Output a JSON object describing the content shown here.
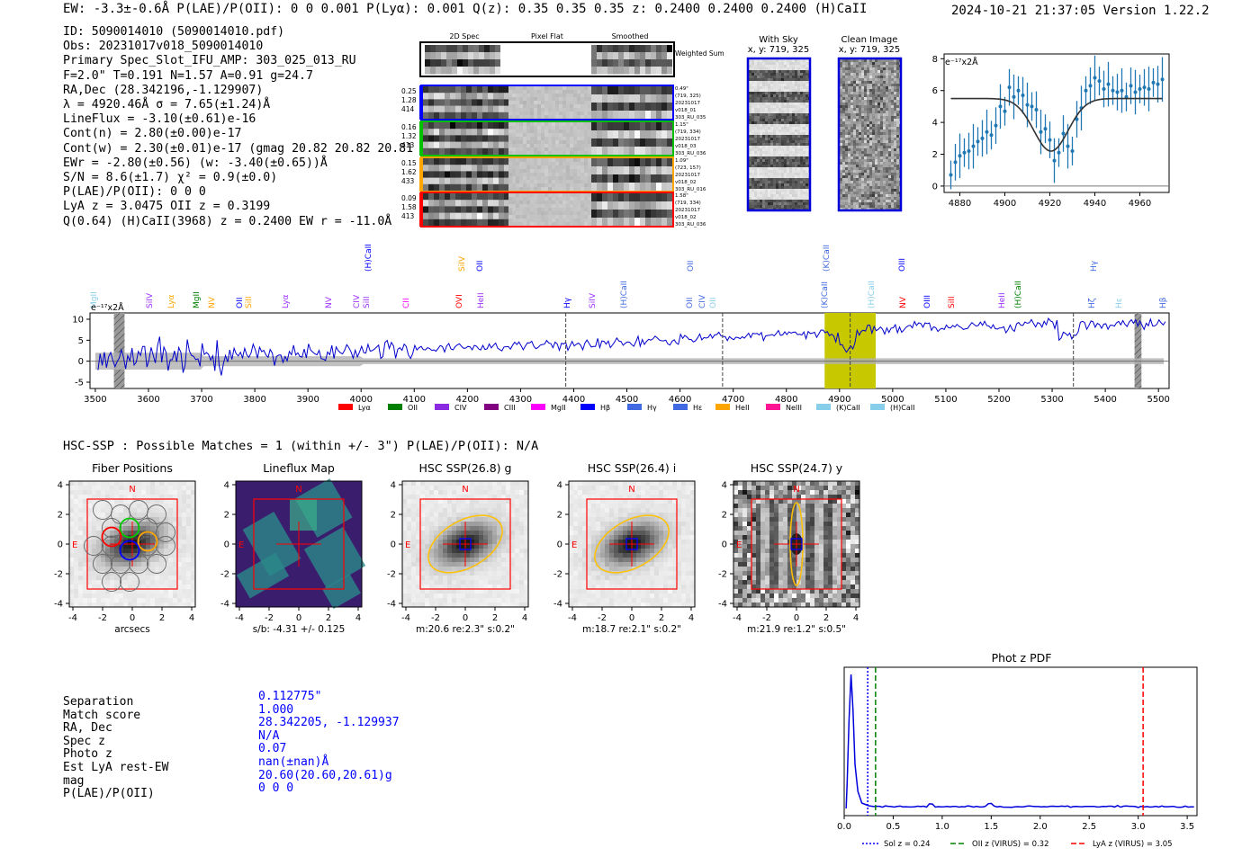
{
  "header": {
    "text": "EW: -3.3±-0.6Å  P(LAE)/P(OII): 0 0 0.001  P(Lyα): 0.001  Q(z): 0.35 0.35 0.35  z: 0.2400 0.2400 0.2400 (H)CaII",
    "timestamp": "2024-10-21 21:37:05  Version 1.22.2"
  },
  "info": [
    "ID: 5090014010 (5090014010.pdf)",
    "Obs: 20231017v018_5090014010",
    "Primary Spec_Slot_IFU_AMP: 303_025_013_RU",
    "F=2.0\"  T=0.191  N=1.57  A=0.91  g=24.7",
    "RA,Dec (28.342196,-1.129907)",
    "λ = 4920.46Å  σ = 7.65(±1.24)Å",
    "LineFlux = -3.10(±0.61)e-16",
    "Cont(n) = 2.80(±0.00)e-17",
    "Cont(w) = 2.30(±0.01)e-17 (gmag 20.82 20.82 20.81 *)",
    "EWr = -2.80(±0.56) (w: -3.40(±0.65))Å",
    "S/N = 8.6(±1.7)  χ² = 0.9(±0.0)",
    "P(LAE)/P(OII): 0 0 0",
    "LyA z = 3.0475  OII z = 0.3199",
    "Q(0.64) (H)CaII(3968) z = 0.2400  EW r = -11.0Å"
  ],
  "cutouts": {
    "col_labels": [
      "2D Spec",
      "Pixel Flat",
      "Smoothed"
    ],
    "weighted_sum_label": "Weighted Sum",
    "rows": [
      {
        "left": [
          "0.25",
          "1.28",
          "414"
        ],
        "right": [
          "0.49\"",
          "(719, 325)",
          "20231017",
          "v018_01",
          "303_RU_035"
        ],
        "color": "#0000ff"
      },
      {
        "left": [
          "0.16",
          "1.32",
          "413"
        ],
        "right": [
          "1.15\"",
          "(719, 334)",
          "20231017",
          "v018_03",
          "303_RU_036"
        ],
        "color": "#00c000"
      },
      {
        "left": [
          "0.15",
          "1.62",
          "433"
        ],
        "right": [
          "1.09\"",
          "(723, 157)",
          "20231017",
          "v018_02",
          "303_RU_016"
        ],
        "color": "#ffa500"
      },
      {
        "left": [
          "0.09",
          "1.58",
          "413"
        ],
        "right": [
          "1.58\"",
          "(719, 334)",
          "20231017",
          "v018_02",
          "303_RU_036"
        ],
        "color": "#ff0000"
      }
    ]
  },
  "sky": {
    "with_sky_title": "With Sky",
    "with_sky_coords": "x, y: 719, 325",
    "clean_title": "Clean Image",
    "clean_coords": "x, y: 719, 325"
  },
  "line_fit": {
    "unit_label": "e⁻¹⁷x2Å",
    "x_ticks": [
      "4880",
      "4900",
      "4920",
      "4940",
      "4960"
    ],
    "y_ticks": [
      "0",
      "2",
      "4",
      "6",
      "8"
    ]
  },
  "full_spectrum": {
    "unit_label": "e⁻¹⁷x2Å",
    "x_ticks": [
      "3500",
      "3600",
      "3700",
      "3800",
      "3900",
      "4000",
      "4100",
      "4200",
      "4300",
      "4400",
      "4500",
      "4600",
      "4700",
      "4800",
      "4900",
      "5000",
      "5100",
      "5200",
      "5300",
      "5400",
      "5500"
    ],
    "y_ticks": [
      "10",
      "5",
      "0",
      "-5"
    ],
    "line_labels": [
      {
        "t": "MgII",
        "x": 104,
        "c": "#87ceeb"
      },
      {
        "t": "SiIV",
        "x": 166,
        "c": "#9b30ff"
      },
      {
        "t": "Lyα",
        "x": 190,
        "c": "#ffa500"
      },
      {
        "t": "MgII",
        "x": 218,
        "c": "#008000"
      },
      {
        "t": "NV",
        "x": 235,
        "c": "#ffa500"
      },
      {
        "t": "OII",
        "x": 266,
        "c": "#0000ff"
      },
      {
        "t": "SiII",
        "x": 276,
        "c": "#ffa500"
      },
      {
        "t": "Lyα",
        "x": 317,
        "c": "#9b30ff"
      },
      {
        "t": "NV",
        "x": 365,
        "c": "#9b30ff"
      },
      {
        "t": "CIV",
        "x": 396,
        "c": "#9b30ff"
      },
      {
        "t": "SiII",
        "x": 407,
        "c": "#9b30ff"
      },
      {
        "t": "CII",
        "x": 451,
        "c": "#ff00ff"
      },
      {
        "t": "OVI",
        "x": 510,
        "c": "#ff0000"
      },
      {
        "t": "HeII",
        "x": 534,
        "c": "#9b30ff"
      },
      {
        "t": "Hγ",
        "x": 630,
        "c": "#0000ff"
      },
      {
        "t": "SiIV",
        "x": 658,
        "c": "#9b30ff"
      },
      {
        "t": "(H)CaII",
        "x": 693,
        "c": "#4169e1"
      },
      {
        "t": "OII",
        "x": 766,
        "c": "#4169e1"
      },
      {
        "t": "CIV",
        "x": 780,
        "c": "#4169e1"
      },
      {
        "t": "OII",
        "x": 792,
        "c": "#87ceeb"
      },
      {
        "t": "(K)CaII",
        "x": 916,
        "c": "#4169e1"
      },
      {
        "t": "(H)CaII",
        "x": 968,
        "c": "#87ceeb"
      },
      {
        "t": "NV",
        "x": 1003,
        "c": "#ff0000"
      },
      {
        "t": "OIII",
        "x": 1030,
        "c": "#0000ff"
      },
      {
        "t": "SiII",
        "x": 1057,
        "c": "#ff0000"
      },
      {
        "t": "HeII",
        "x": 1113,
        "c": "#9b30ff"
      },
      {
        "t": "(H)CaII",
        "x": 1131,
        "c": "#008000"
      },
      {
        "t": "Hζ",
        "x": 1213,
        "c": "#4169e1"
      },
      {
        "t": "Hε",
        "x": 1243,
        "c": "#87ceeb"
      },
      {
        "t": "Hβ",
        "x": 1292,
        "c": "#4169e1"
      }
    ],
    "upper_labels": [
      {
        "t": "(H)CaII",
        "x": 409,
        "c": "#0000ff"
      },
      {
        "t": "SiIV",
        "x": 513,
        "c": "#ffa500"
      },
      {
        "t": "OII",
        "x": 533,
        "c": "#0000ff"
      },
      {
        "t": "OII",
        "x": 767,
        "c": "#4169e1"
      },
      {
        "t": "(K)CaII",
        "x": 918,
        "c": "#4169e1"
      },
      {
        "t": "OIII",
        "x": 1002,
        "c": "#0000ff"
      },
      {
        "t": "Hγ",
        "x": 1215,
        "c": "#4169e1"
      }
    ],
    "legend": [
      {
        "t": "Lyα",
        "c": "#ff0000"
      },
      {
        "t": "OII",
        "c": "#008000"
      },
      {
        "t": "CIV",
        "c": "#8a2be2"
      },
      {
        "t": "CIII",
        "c": "#800080"
      },
      {
        "t": "MgII",
        "c": "#ff00ff"
      },
      {
        "t": "Hβ",
        "c": "#0000ff"
      },
      {
        "t": "Hγ",
        "c": "#4169e1"
      },
      {
        "t": "Hε",
        "c": "#4169e1"
      },
      {
        "t": "HeII",
        "c": "#ffa500"
      },
      {
        "t": "NeIII",
        "c": "#ff1493"
      },
      {
        "t": "(K)CaII",
        "c": "#87ceeb"
      },
      {
        "t": "(H)CaII",
        "c": "#87ceeb"
      }
    ]
  },
  "hsc": {
    "summary": "HSC-SSP : Possible Matches = 1 (within +/- 3\")  P(LAE)/P(OII): N/A",
    "panels": [
      {
        "title": "Fiber Positions",
        "caption": "arcsecs"
      },
      {
        "title": "Lineflux Map",
        "caption": "s/b: -4.31 +/- 0.125"
      },
      {
        "title": "HSC SSP(26.8) g",
        "caption": "m:20.6  re:2.3\"  s:0.2\""
      },
      {
        "title": "HSC SSP(26.4) i",
        "caption": "m:18.7  re:2.1\"  s:0.2\""
      },
      {
        "title": "HSC SSP(24.7) y",
        "caption": "m:21.9  re:1.2\"  s:0.5\""
      }
    ],
    "axis_ticks": [
      "4",
      "2",
      "0",
      "-2",
      "-4"
    ],
    "x_ticks": [
      "-4",
      "-2",
      "0",
      "2",
      "4"
    ],
    "north_label": "N",
    "east_label": "E"
  },
  "match": {
    "labels": [
      "Separation",
      "Match score",
      "RA, Dec",
      "Spec z",
      "Photo z",
      "Est LyA rest-EW",
      "mag",
      "P(LAE)/P(OII)"
    ],
    "values": [
      "0.112775\"",
      "1.000",
      "28.342205, -1.129937",
      "N/A",
      "0.07",
      "nan(±nan)Å",
      "20.60(20.60,20.61)g",
      "0 0 0"
    ]
  },
  "photz": {
    "title": "Phot z PDF",
    "x_ticks": [
      "0.0",
      "0.5",
      "1.0",
      "1.5",
      "2.0",
      "2.5",
      "3.0",
      "3.5"
    ],
    "legend": [
      {
        "t": "Sol z = 0.24",
        "c": "#0000ff",
        "dash": "2,2"
      },
      {
        "t": "OII z (VIRUS) = 0.32",
        "c": "#008000",
        "dash": "6,3"
      },
      {
        "t": "LyA z (VIRUS) = 3.05",
        "c": "#ff0000",
        "dash": "6,3"
      }
    ]
  },
  "chart_data": [
    {
      "type": "scatter",
      "name": "line fit",
      "x_range": [
        4873,
        4973
      ],
      "ylim": [
        -0.4,
        8.3
      ],
      "points_x": [
        4876,
        4878,
        4880,
        4882,
        4884,
        4886,
        4888,
        4890,
        4892,
        4894,
        4896,
        4898,
        4900,
        4902,
        4904,
        4906,
        4908,
        4910,
        4912,
        4914,
        4916,
        4918,
        4920,
        4922,
        4924,
        4926,
        4928,
        4930,
        4932,
        4934,
        4936,
        4938,
        4940,
        4942,
        4944,
        4946,
        4948,
        4950,
        4952,
        4954,
        4956,
        4958,
        4960,
        4962,
        4964,
        4966,
        4968,
        4970
      ],
      "points_y": [
        0.7,
        1.5,
        1.9,
        2.1,
        2.2,
        2.5,
        2.8,
        3.0,
        3.4,
        3.2,
        3.8,
        5.0,
        4.7,
        6.2,
        5.6,
        6.0,
        5.7,
        5.1,
        5.0,
        4.8,
        3.4,
        3.6,
        2.9,
        1.6,
        2.1,
        3.3,
        2.5,
        2.2,
        4.2,
        4.9,
        6.0,
        6.3,
        6.8,
        6.6,
        6.1,
        6.4,
        6.0,
        5.9,
        6.0,
        5.6,
        6.3,
        5.9,
        6.1,
        6.2,
        6.1,
        6.5,
        6.4,
        6.7
      ],
      "fit": {
        "continuum": 5.5,
        "center": 4920.5,
        "sigma": 7.65,
        "depth": 3.3
      }
    },
    {
      "type": "line",
      "name": "full spectrum",
      "x_range": [
        3490,
        5520
      ],
      "ylim": [
        -6.5,
        11.5
      ],
      "vlines": [
        4385,
        4680,
        5340,
        4920
      ],
      "shaded": [
        [
          4872,
          4968
        ]
      ],
      "masked": [
        [
          3535,
          3555
        ],
        [
          5455,
          5468
        ]
      ]
    },
    {
      "type": "line",
      "name": "Phot z PDF",
      "x_range": [
        0,
        3.6
      ],
      "vlines": [
        0.24,
        0.32,
        3.05
      ]
    }
  ]
}
